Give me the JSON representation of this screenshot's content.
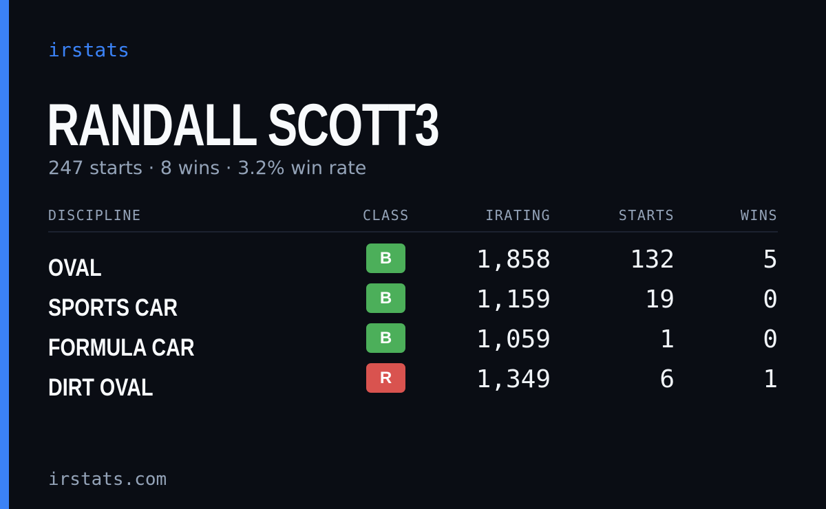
{
  "brand": "irstats",
  "driver": {
    "name": "RANDALL SCOTT3",
    "summary": "247 starts · 8 wins · 3.2% win rate"
  },
  "table": {
    "headers": {
      "discipline": "DISCIPLINE",
      "class": "CLASS",
      "irating": "IRATING",
      "starts": "STARTS",
      "wins": "WINS"
    },
    "rows": [
      {
        "discipline": "OVAL",
        "class": "B",
        "class_color": "#4caf5a",
        "irating": "1,858",
        "starts": "132",
        "wins": "5"
      },
      {
        "discipline": "SPORTS CAR",
        "class": "B",
        "class_color": "#4caf5a",
        "irating": "1,159",
        "starts": "19",
        "wins": "0"
      },
      {
        "discipline": "FORMULA CAR",
        "class": "B",
        "class_color": "#4caf5a",
        "irating": "1,059",
        "starts": "1",
        "wins": "0"
      },
      {
        "discipline": "DIRT OVAL",
        "class": "R",
        "class_color": "#d9534f",
        "irating": "1,349",
        "starts": "6",
        "wins": "1"
      }
    ]
  },
  "footer": {
    "domain": "irstats.com"
  },
  "colors": {
    "background": "#0a0d14",
    "accent": "#3b82f6",
    "muted": "#94a3b8",
    "text": "#f8fafc"
  }
}
